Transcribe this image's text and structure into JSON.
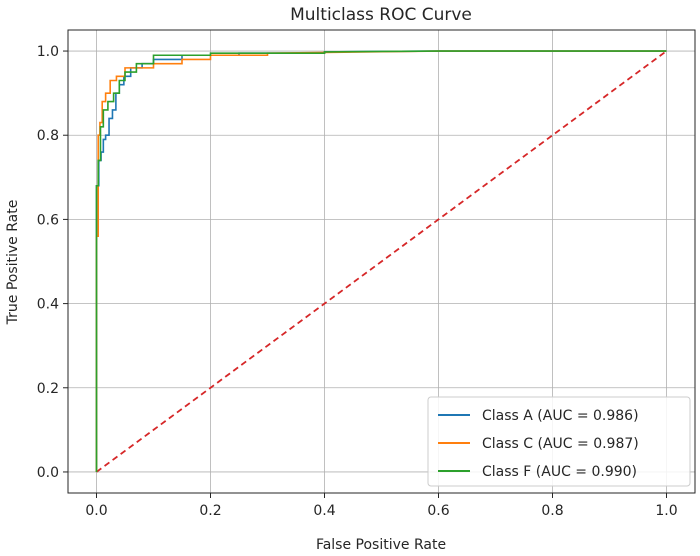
{
  "chart_data": {
    "type": "line",
    "title": "Multiclass ROC Curve",
    "xlabel": "False Positive Rate",
    "ylabel": "True Positive Rate",
    "xlim": [
      -0.05,
      1.05
    ],
    "ylim": [
      -0.05,
      1.05
    ],
    "xticks": [
      0.0,
      0.2,
      0.4,
      0.6,
      0.8,
      1.0
    ],
    "yticks": [
      0.0,
      0.2,
      0.4,
      0.6,
      0.8,
      1.0
    ],
    "xtick_labels": [
      "0.0",
      "0.2",
      "0.4",
      "0.6",
      "0.8",
      "1.0"
    ],
    "ytick_labels": [
      "0.0",
      "0.2",
      "0.4",
      "0.6",
      "0.8",
      "1.0"
    ],
    "grid": true,
    "legend_position": "lower-right",
    "series": [
      {
        "name": "Class A (AUC = 0.986)",
        "color": "#1f77b4",
        "x": [
          0.0,
          0.0,
          0.004,
          0.004,
          0.008,
          0.008,
          0.012,
          0.012,
          0.016,
          0.016,
          0.022,
          0.022,
          0.028,
          0.028,
          0.034,
          0.034,
          0.04,
          0.04,
          0.048,
          0.048,
          0.06,
          0.06,
          0.08,
          0.08,
          0.1,
          0.1,
          0.15,
          0.15,
          0.25,
          0.25,
          0.4,
          0.4,
          0.6,
          1.0
        ],
        "y": [
          0.0,
          0.68,
          0.68,
          0.74,
          0.74,
          0.76,
          0.76,
          0.79,
          0.79,
          0.8,
          0.8,
          0.84,
          0.84,
          0.86,
          0.86,
          0.9,
          0.9,
          0.92,
          0.92,
          0.94,
          0.94,
          0.96,
          0.96,
          0.97,
          0.97,
          0.98,
          0.98,
          0.99,
          0.99,
          0.995,
          0.995,
          0.998,
          1.0,
          1.0
        ]
      },
      {
        "name": "Class C (AUC = 0.987)",
        "color": "#ff7f0e",
        "x": [
          0.0,
          0.0,
          0.003,
          0.003,
          0.006,
          0.006,
          0.01,
          0.01,
          0.016,
          0.016,
          0.024,
          0.024,
          0.035,
          0.035,
          0.05,
          0.05,
          0.1,
          0.1,
          0.15,
          0.15,
          0.2,
          0.2,
          0.3,
          0.3,
          0.6,
          1.0
        ],
        "y": [
          0.0,
          0.56,
          0.56,
          0.8,
          0.8,
          0.83,
          0.83,
          0.88,
          0.88,
          0.9,
          0.9,
          0.93,
          0.93,
          0.94,
          0.94,
          0.96,
          0.96,
          0.97,
          0.97,
          0.98,
          0.98,
          0.99,
          0.99,
          0.995,
          1.0,
          1.0
        ]
      },
      {
        "name": "Class F (AUC = 0.990)",
        "color": "#2ca02c",
        "x": [
          0.0,
          0.0,
          0.003,
          0.003,
          0.007,
          0.007,
          0.012,
          0.012,
          0.02,
          0.02,
          0.03,
          0.03,
          0.04,
          0.04,
          0.05,
          0.05,
          0.07,
          0.07,
          0.1,
          0.1,
          0.2,
          0.2,
          0.4,
          0.4,
          0.6,
          1.0
        ],
        "y": [
          0.0,
          0.68,
          0.68,
          0.74,
          0.74,
          0.82,
          0.82,
          0.86,
          0.86,
          0.88,
          0.88,
          0.9,
          0.9,
          0.93,
          0.93,
          0.95,
          0.95,
          0.97,
          0.97,
          0.99,
          0.99,
          0.995,
          0.995,
          0.998,
          1.0,
          1.0
        ]
      },
      {
        "color": "#d62728",
        "style": "dashed",
        "x": [
          0.0,
          1.0
        ],
        "y": [
          0.0,
          1.0
        ]
      }
    ]
  }
}
